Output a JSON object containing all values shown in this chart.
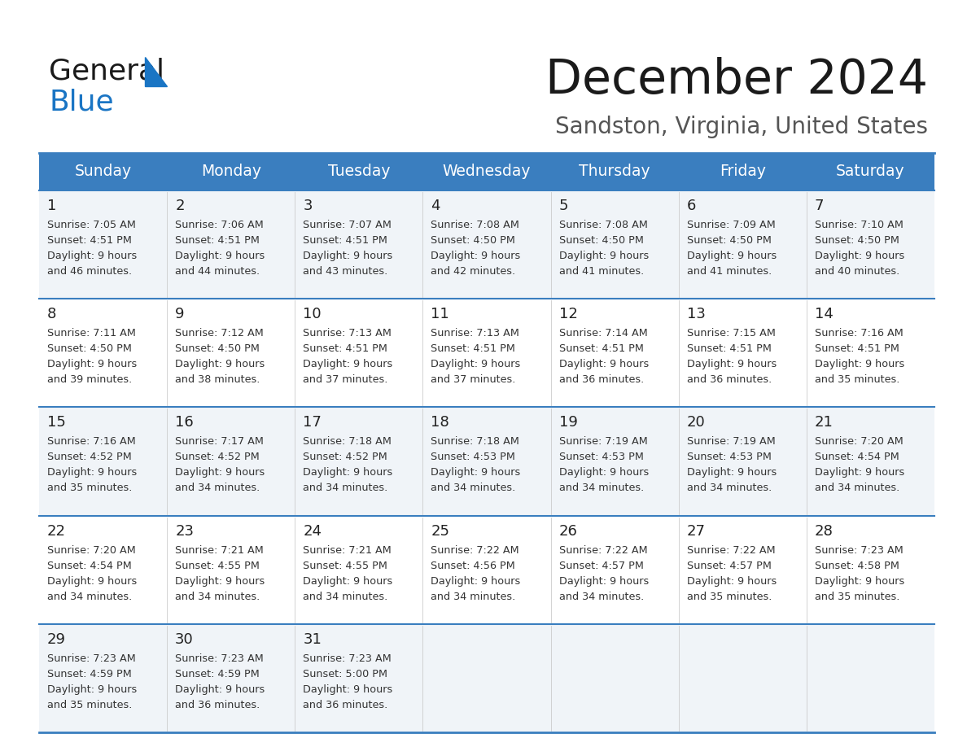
{
  "title": "December 2024",
  "subtitle": "Sandston, Virginia, United States",
  "days_of_week": [
    "Sunday",
    "Monday",
    "Tuesday",
    "Wednesday",
    "Thursday",
    "Friday",
    "Saturday"
  ],
  "header_bg": "#3a7ebf",
  "header_text_color": "#ffffff",
  "row_bg_even": "#f0f4f8",
  "row_bg_odd": "#ffffff",
  "cell_text_color": "#333333",
  "day_num_color": "#222222",
  "separator_color": "#3a7ebf",
  "bg_color": "#ffffff",
  "title_color": "#1a1a1a",
  "subtitle_color": "#555555",
  "logo_general_color": "#1a1a1a",
  "logo_blue_color": "#1a75c4",
  "calendar_data": [
    [
      {
        "day": 1,
        "sunrise": "7:05 AM",
        "sunset": "4:51 PM",
        "daylight_hrs": 9,
        "daylight_min": 46
      },
      {
        "day": 2,
        "sunrise": "7:06 AM",
        "sunset": "4:51 PM",
        "daylight_hrs": 9,
        "daylight_min": 44
      },
      {
        "day": 3,
        "sunrise": "7:07 AM",
        "sunset": "4:51 PM",
        "daylight_hrs": 9,
        "daylight_min": 43
      },
      {
        "day": 4,
        "sunrise": "7:08 AM",
        "sunset": "4:50 PM",
        "daylight_hrs": 9,
        "daylight_min": 42
      },
      {
        "day": 5,
        "sunrise": "7:08 AM",
        "sunset": "4:50 PM",
        "daylight_hrs": 9,
        "daylight_min": 41
      },
      {
        "day": 6,
        "sunrise": "7:09 AM",
        "sunset": "4:50 PM",
        "daylight_hrs": 9,
        "daylight_min": 41
      },
      {
        "day": 7,
        "sunrise": "7:10 AM",
        "sunset": "4:50 PM",
        "daylight_hrs": 9,
        "daylight_min": 40
      }
    ],
    [
      {
        "day": 8,
        "sunrise": "7:11 AM",
        "sunset": "4:50 PM",
        "daylight_hrs": 9,
        "daylight_min": 39
      },
      {
        "day": 9,
        "sunrise": "7:12 AM",
        "sunset": "4:50 PM",
        "daylight_hrs": 9,
        "daylight_min": 38
      },
      {
        "day": 10,
        "sunrise": "7:13 AM",
        "sunset": "4:51 PM",
        "daylight_hrs": 9,
        "daylight_min": 37
      },
      {
        "day": 11,
        "sunrise": "7:13 AM",
        "sunset": "4:51 PM",
        "daylight_hrs": 9,
        "daylight_min": 37
      },
      {
        "day": 12,
        "sunrise": "7:14 AM",
        "sunset": "4:51 PM",
        "daylight_hrs": 9,
        "daylight_min": 36
      },
      {
        "day": 13,
        "sunrise": "7:15 AM",
        "sunset": "4:51 PM",
        "daylight_hrs": 9,
        "daylight_min": 36
      },
      {
        "day": 14,
        "sunrise": "7:16 AM",
        "sunset": "4:51 PM",
        "daylight_hrs": 9,
        "daylight_min": 35
      }
    ],
    [
      {
        "day": 15,
        "sunrise": "7:16 AM",
        "sunset": "4:52 PM",
        "daylight_hrs": 9,
        "daylight_min": 35
      },
      {
        "day": 16,
        "sunrise": "7:17 AM",
        "sunset": "4:52 PM",
        "daylight_hrs": 9,
        "daylight_min": 34
      },
      {
        "day": 17,
        "sunrise": "7:18 AM",
        "sunset": "4:52 PM",
        "daylight_hrs": 9,
        "daylight_min": 34
      },
      {
        "day": 18,
        "sunrise": "7:18 AM",
        "sunset": "4:53 PM",
        "daylight_hrs": 9,
        "daylight_min": 34
      },
      {
        "day": 19,
        "sunrise": "7:19 AM",
        "sunset": "4:53 PM",
        "daylight_hrs": 9,
        "daylight_min": 34
      },
      {
        "day": 20,
        "sunrise": "7:19 AM",
        "sunset": "4:53 PM",
        "daylight_hrs": 9,
        "daylight_min": 34
      },
      {
        "day": 21,
        "sunrise": "7:20 AM",
        "sunset": "4:54 PM",
        "daylight_hrs": 9,
        "daylight_min": 34
      }
    ],
    [
      {
        "day": 22,
        "sunrise": "7:20 AM",
        "sunset": "4:54 PM",
        "daylight_hrs": 9,
        "daylight_min": 34
      },
      {
        "day": 23,
        "sunrise": "7:21 AM",
        "sunset": "4:55 PM",
        "daylight_hrs": 9,
        "daylight_min": 34
      },
      {
        "day": 24,
        "sunrise": "7:21 AM",
        "sunset": "4:55 PM",
        "daylight_hrs": 9,
        "daylight_min": 34
      },
      {
        "day": 25,
        "sunrise": "7:22 AM",
        "sunset": "4:56 PM",
        "daylight_hrs": 9,
        "daylight_min": 34
      },
      {
        "day": 26,
        "sunrise": "7:22 AM",
        "sunset": "4:57 PM",
        "daylight_hrs": 9,
        "daylight_min": 34
      },
      {
        "day": 27,
        "sunrise": "7:22 AM",
        "sunset": "4:57 PM",
        "daylight_hrs": 9,
        "daylight_min": 35
      },
      {
        "day": 28,
        "sunrise": "7:23 AM",
        "sunset": "4:58 PM",
        "daylight_hrs": 9,
        "daylight_min": 35
      }
    ],
    [
      {
        "day": 29,
        "sunrise": "7:23 AM",
        "sunset": "4:59 PM",
        "daylight_hrs": 9,
        "daylight_min": 35
      },
      {
        "day": 30,
        "sunrise": "7:23 AM",
        "sunset": "4:59 PM",
        "daylight_hrs": 9,
        "daylight_min": 36
      },
      {
        "day": 31,
        "sunrise": "7:23 AM",
        "sunset": "5:00 PM",
        "daylight_hrs": 9,
        "daylight_min": 36
      },
      null,
      null,
      null,
      null
    ]
  ]
}
